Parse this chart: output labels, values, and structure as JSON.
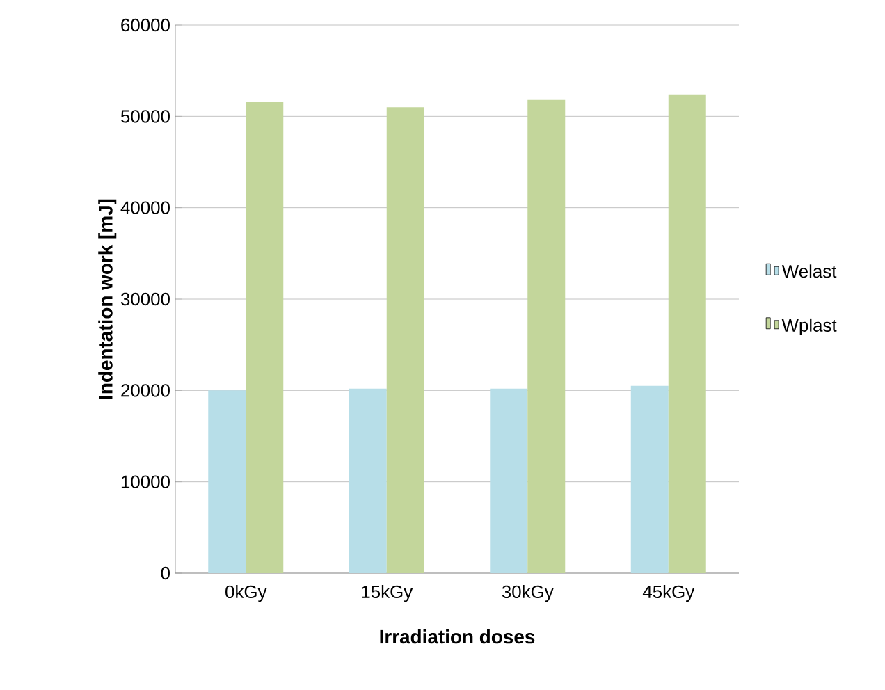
{
  "chart_data": {
    "type": "bar",
    "xlabel": "Irradiation doses",
    "ylabel": "Indentation work [mJ]",
    "categories": [
      "0kGy",
      "15kGy",
      "30kGy",
      "45kGy"
    ],
    "series": [
      {
        "name": "Welast",
        "color": "#b7dee8",
        "values": [
          20000,
          20200,
          20200,
          20500
        ]
      },
      {
        "name": "Wplast",
        "color": "#c3d69b",
        "values": [
          51600,
          51000,
          51800,
          52400
        ]
      }
    ],
    "ylim": [
      0,
      60000
    ],
    "yticks": [
      0,
      10000,
      20000,
      30000,
      40000,
      50000,
      60000
    ],
    "grid": "y",
    "legend": "right"
  }
}
